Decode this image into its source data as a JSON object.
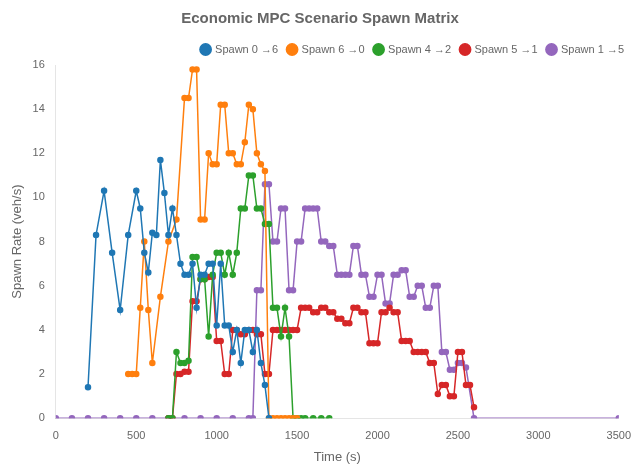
{
  "chart_data": {
    "type": "line",
    "title": "Economic MPC Scenario Spawn Matrix",
    "xlabel": "Time (s)",
    "ylabel": "Spawn Rate (veh/s)",
    "xlim": [
      0,
      3500
    ],
    "ylim": [
      0,
      16
    ],
    "xticks": [
      0,
      500,
      1000,
      1500,
      2000,
      2500,
      3000,
      3500
    ],
    "yticks": [
      0,
      2,
      4,
      6,
      8,
      10,
      12,
      14,
      16
    ],
    "grid": false,
    "legend": "upper right",
    "marker": "o",
    "line_style": "solid",
    "series": [
      {
        "name": "Spawn 0 →6",
        "color": "#1f77b4",
        "x": [
          200,
          250,
          300,
          350,
          400,
          450,
          500,
          525,
          550,
          575,
          600,
          625,
          650,
          675,
          700,
          725,
          750,
          775,
          800,
          825,
          850,
          875,
          900,
          925,
          950,
          975,
          1000,
          1025,
          1050,
          1075,
          1100,
          1125,
          1150,
          1175,
          1200,
          1225,
          1250,
          1275,
          1300,
          1325
        ],
        "values": [
          1.4,
          8.3,
          10.3,
          7.5,
          4.9,
          8.3,
          10.3,
          9.5,
          7.5,
          6.6,
          8.4,
          8.3,
          11.7,
          10.2,
          8.3,
          9.5,
          8.3,
          7.0,
          6.5,
          6.5,
          7.0,
          5.0,
          6.5,
          6.5,
          7.0,
          7.0,
          4.2,
          7.0,
          4.2,
          4.2,
          3.0,
          4.0,
          2.5,
          4.0,
          4.0,
          3.0,
          4.0,
          2.5,
          1.5,
          0.0
        ]
      },
      {
        "name": "Spawn 6 →0",
        "color": "#ff7f0e",
        "x": [
          450,
          475,
          500,
          525,
          550,
          575,
          600,
          650,
          700,
          750,
          800,
          825,
          850,
          875,
          900,
          925,
          950,
          975,
          1000,
          1025,
          1050,
          1075,
          1100,
          1125,
          1150,
          1175,
          1200,
          1225,
          1250,
          1275,
          1300,
          1325,
          1350,
          1375,
          1400,
          1425,
          1450,
          1475,
          1500
        ],
        "values": [
          2.0,
          2.0,
          2.0,
          5.0,
          8.0,
          4.9,
          2.5,
          5.5,
          8.0,
          9.0,
          14.5,
          14.5,
          15.8,
          15.8,
          9.0,
          9.0,
          12.0,
          11.5,
          11.5,
          14.2,
          14.2,
          12.0,
          12.0,
          11.5,
          11.5,
          12.5,
          14.2,
          14.0,
          12.0,
          11.5,
          11.2,
          0.0,
          0.0,
          0.0,
          0.0,
          0.0,
          0.0,
          0.0,
          0.0
        ]
      },
      {
        "name": "Spawn 4 →2",
        "color": "#2ca02c",
        "x": [
          700,
          725,
          750,
          775,
          800,
          825,
          850,
          875,
          900,
          925,
          950,
          975,
          1000,
          1025,
          1050,
          1075,
          1100,
          1125,
          1150,
          1175,
          1200,
          1225,
          1250,
          1275,
          1300,
          1325,
          1350,
          1375,
          1400,
          1425,
          1450,
          1475,
          1500,
          1525,
          1550,
          1600,
          1650,
          1700
        ],
        "values": [
          0.0,
          0.0,
          3.0,
          2.5,
          2.5,
          2.6,
          7.3,
          7.3,
          6.3,
          6.3,
          3.7,
          6.5,
          7.5,
          7.5,
          6.5,
          7.5,
          6.5,
          7.5,
          9.5,
          9.5,
          11.0,
          11.0,
          9.5,
          9.5,
          8.8,
          8.8,
          5.0,
          5.0,
          3.7,
          5.0,
          3.7,
          0.0,
          0.0,
          0.0,
          0.0,
          0.0,
          0.0,
          0.0
        ]
      },
      {
        "name": "Spawn 5 →1",
        "color": "#d62728",
        "x": [
          700,
          725,
          750,
          775,
          800,
          825,
          850,
          875,
          900,
          925,
          950,
          975,
          1000,
          1025,
          1050,
          1075,
          1100,
          1125,
          1150,
          1175,
          1200,
          1225,
          1250,
          1275,
          1300,
          1325,
          1350,
          1375,
          1400,
          1425,
          1450,
          1475,
          1500,
          1525,
          1550,
          1575,
          1600,
          1625,
          1650,
          1675,
          1700,
          1725,
          1750,
          1775,
          1800,
          1825,
          1850,
          1875,
          1900,
          1925,
          1950,
          1975,
          2000,
          2025,
          2050,
          2075,
          2100,
          2125,
          2150,
          2175,
          2200,
          2225,
          2250,
          2275,
          2300,
          2325,
          2350,
          2375,
          2400,
          2425,
          2450,
          2475,
          2500,
          2525,
          2550,
          2575,
          2600
        ],
        "values": [
          0.0,
          0.0,
          2.0,
          2.0,
          2.1,
          2.1,
          5.3,
          5.3,
          6.3,
          6.3,
          6.4,
          6.4,
          3.5,
          3.5,
          2.0,
          2.0,
          4.0,
          4.0,
          3.8,
          3.8,
          4.0,
          4.0,
          3.8,
          3.8,
          2.0,
          2.0,
          4.0,
          4.0,
          4.0,
          4.0,
          4.0,
          4.0,
          4.0,
          5.0,
          5.0,
          5.0,
          4.8,
          4.8,
          5.0,
          5.0,
          4.8,
          4.8,
          4.5,
          4.5,
          4.3,
          4.3,
          5.0,
          5.0,
          4.8,
          4.8,
          3.4,
          3.4,
          3.4,
          4.8,
          4.8,
          5.0,
          4.8,
          4.8,
          3.5,
          3.5,
          3.5,
          3.0,
          3.0,
          3.0,
          3.0,
          2.5,
          2.5,
          1.1,
          1.5,
          1.5,
          1.0,
          1.0,
          3.0,
          3.0,
          1.5,
          1.5,
          0.5
        ]
      },
      {
        "name": "Spawn 1 →5",
        "color": "#9467bd",
        "x": [
          0,
          100,
          200,
          300,
          400,
          500,
          600,
          700,
          800,
          900,
          1000,
          1100,
          1200,
          1225,
          1250,
          1275,
          1300,
          1325,
          1350,
          1375,
          1400,
          1425,
          1450,
          1475,
          1500,
          1525,
          1550,
          1575,
          1600,
          1625,
          1650,
          1675,
          1700,
          1725,
          1750,
          1775,
          1800,
          1825,
          1850,
          1875,
          1900,
          1925,
          1950,
          1975,
          2000,
          2025,
          2050,
          2075,
          2100,
          2125,
          2150,
          2175,
          2200,
          2225,
          2250,
          2275,
          2300,
          2325,
          2350,
          2375,
          2400,
          2425,
          2450,
          2475,
          2500,
          2525,
          2550,
          2600,
          3500
        ],
        "values": [
          0.0,
          0.0,
          0.0,
          0.0,
          0.0,
          0.0,
          0.0,
          0.0,
          0.0,
          0.0,
          0.0,
          0.0,
          0.0,
          0.0,
          5.8,
          5.8,
          10.6,
          10.6,
          8.0,
          8.0,
          9.5,
          9.5,
          5.8,
          5.8,
          8.0,
          8.0,
          9.5,
          9.5,
          9.5,
          9.5,
          8.0,
          8.0,
          7.8,
          7.8,
          6.5,
          6.5,
          6.5,
          6.5,
          7.8,
          7.8,
          6.5,
          6.5,
          5.5,
          5.5,
          6.5,
          6.5,
          5.2,
          5.2,
          6.5,
          6.5,
          6.7,
          6.7,
          5.5,
          5.5,
          6.0,
          6.0,
          5.0,
          5.0,
          6.0,
          6.0,
          3.0,
          3.0,
          2.2,
          2.2,
          2.5,
          2.5,
          2.3,
          0.0,
          0.0
        ]
      }
    ]
  }
}
